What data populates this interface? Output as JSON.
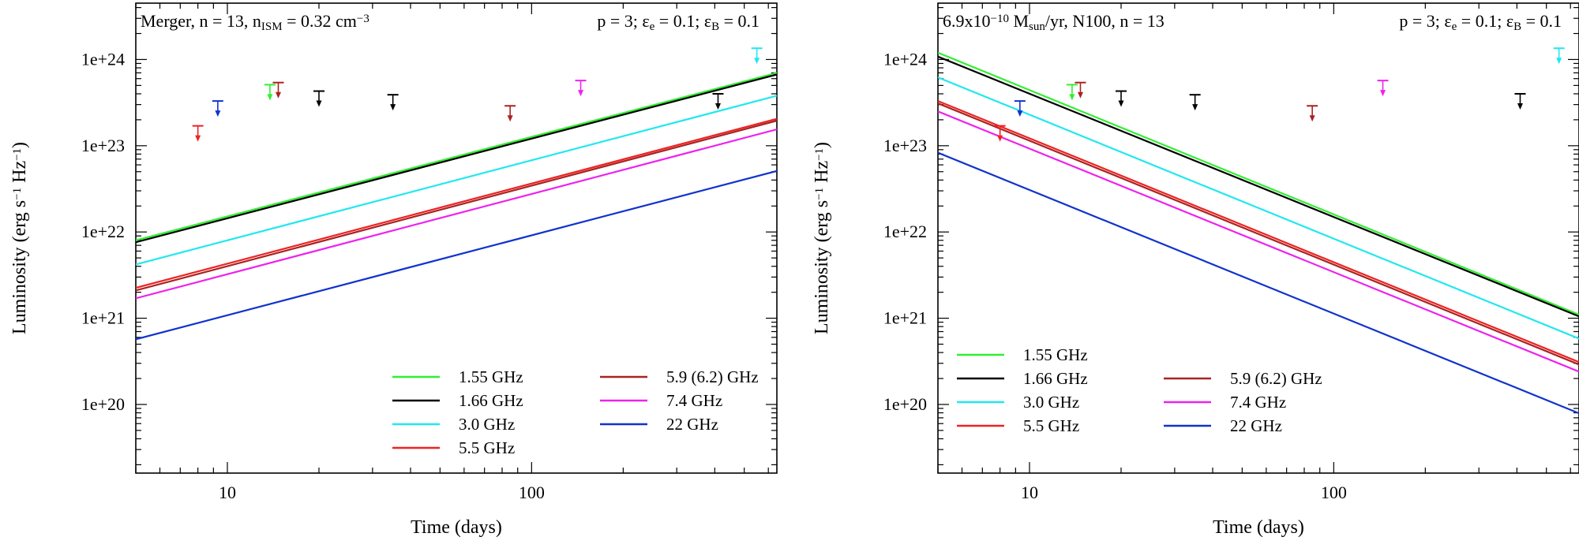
{
  "figure": {
    "colors": {
      "1.55 GHz": "#33ee33",
      "1.66 GHz": "#000000",
      "3.0 GHz": "#22e8ee",
      "5.5 GHz": "#ee2222",
      "5.9 (6.2) GHz": "#aa2222",
      "7.4 GHz": "#ee22ee",
      "22 GHz": "#1133cc"
    }
  },
  "chart_data": [
    {
      "type": "line",
      "title_parts": {
        "left": [
          "Merger, n = 13, n",
          "ISM",
          " = 0.32 cm",
          "−3"
        ],
        "right": [
          "p = 3; ε",
          "e",
          " = 0.1;  ε",
          "B",
          " = 0.1"
        ]
      },
      "xlabel": "Time (days)",
      "ylabel_parts": [
        "Luminosity (erg s",
        "−1",
        " Hz",
        "−1",
        ")"
      ],
      "xscale": "log",
      "yscale": "log",
      "xlim": [
        5,
        640
      ],
      "ylim": [
        1.6e+19,
        4.5e+24
      ],
      "xticks": [
        {
          "v": 10,
          "label": "10"
        },
        {
          "v": 100,
          "label": "100"
        }
      ],
      "yticks": [
        {
          "v": 1e+20,
          "label": "1e+20"
        },
        {
          "v": 1e+21,
          "label": "1e+21"
        },
        {
          "v": 1e+22,
          "label": "1e+22"
        },
        {
          "v": 1e+23,
          "label": "1e+23"
        },
        {
          "v": 1e+24,
          "label": "1e+24"
        }
      ],
      "series": [
        {
          "name": "1.55 GHz",
          "x": [
            5,
            640
          ],
          "y": [
            8e+21,
            7e+23
          ]
        },
        {
          "name": "1.66 GHz",
          "x": [
            5,
            640
          ],
          "y": [
            7.6e+21,
            6.7e+23
          ]
        },
        {
          "name": "3.0 GHz",
          "x": [
            5,
            640
          ],
          "y": [
            4.2e+21,
            3.8e+23
          ]
        },
        {
          "name": "5.5 GHz",
          "x": [
            5,
            640
          ],
          "y": [
            2.25e+21,
            2.05e+23
          ]
        },
        {
          "name": "5.9 (6.2) GHz",
          "x": [
            5,
            640
          ],
          "y": [
            2.1e+21,
            1.95e+23
          ]
        },
        {
          "name": "7.4 GHz",
          "x": [
            5,
            640
          ],
          "y": [
            1.7e+21,
            1.55e+23
          ]
        },
        {
          "name": "22 GHz",
          "x": [
            5,
            640
          ],
          "y": [
            5.7e+20,
            5.1e+22
          ]
        }
      ],
      "upper_limits": [
        {
          "x": 8.0,
          "y": 1.7e+23,
          "name": "5.5 GHz"
        },
        {
          "x": 9.3,
          "y": 3.3e+23,
          "name": "22 GHz"
        },
        {
          "x": 13.8,
          "y": 5.1e+23,
          "name": "1.55 GHz"
        },
        {
          "x": 14.7,
          "y": 5.4e+23,
          "name": "5.9 (6.2) GHz"
        },
        {
          "x": 20.0,
          "y": 4.3e+23,
          "name": "1.66 GHz"
        },
        {
          "x": 35.0,
          "y": 3.9e+23,
          "name": "1.66 GHz"
        },
        {
          "x": 85.0,
          "y": 2.9e+23,
          "name": "5.9 (6.2) GHz"
        },
        {
          "x": 145.0,
          "y": 5.7e+23,
          "name": "7.4 GHz"
        },
        {
          "x": 410.0,
          "y": 4e+23,
          "name": "1.66 GHz"
        },
        {
          "x": 550.0,
          "y": 1.35e+24,
          "name": "3.0 GHz"
        }
      ],
      "legend": {
        "columns": [
          [
            "1.55 GHz",
            "1.66 GHz",
            "3.0 GHz",
            "5.5 GHz"
          ],
          [
            "5.9 (6.2) GHz",
            "7.4 GHz",
            "22 GHz"
          ]
        ],
        "position": "bottom-right",
        "top_row": 0
      }
    },
    {
      "type": "line",
      "title_parts": {
        "left": [
          "6.9x10",
          "−10",
          " M",
          "sun",
          "/yr, N100, n = 13"
        ],
        "right": [
          "p = 3; ε",
          "e",
          " = 0.1;  ε",
          "B",
          " = 0.1"
        ]
      },
      "xlabel": "Time (days)",
      "ylabel_parts": [
        "Luminosity (erg s",
        "−1",
        " Hz",
        "−1",
        ")"
      ],
      "xscale": "log",
      "yscale": "log",
      "xlim": [
        5,
        640
      ],
      "ylim": [
        1.6e+19,
        4.5e+24
      ],
      "xticks": [
        {
          "v": 10,
          "label": "10"
        },
        {
          "v": 100,
          "label": "100"
        }
      ],
      "yticks": [
        {
          "v": 1e+20,
          "label": "1e+20"
        },
        {
          "v": 1e+21,
          "label": "1e+21"
        },
        {
          "v": 1e+22,
          "label": "1e+22"
        },
        {
          "v": 1e+23,
          "label": "1e+23"
        },
        {
          "v": 1e+24,
          "label": "1e+24"
        }
      ],
      "series": [
        {
          "name": "1.55 GHz",
          "x": [
            5,
            640
          ],
          "y": [
            1.2e+24,
            1.1e+21
          ]
        },
        {
          "name": "1.66 GHz",
          "x": [
            5,
            640
          ],
          "y": [
            1.08e+24,
            1.05e+21
          ]
        },
        {
          "name": "3.0 GHz",
          "x": [
            5,
            640
          ],
          "y": [
            6.2e+23,
            5.8e+20
          ]
        },
        {
          "name": "5.5 GHz",
          "x": [
            5,
            640
          ],
          "y": [
            3.3e+23,
            3.1e+20
          ]
        },
        {
          "name": "5.9 (6.2) GHz",
          "x": [
            5,
            640
          ],
          "y": [
            3.1e+23,
            2.9e+20
          ]
        },
        {
          "name": "7.4 GHz",
          "x": [
            5,
            640
          ],
          "y": [
            2.5e+23,
            2.4e+20
          ]
        },
        {
          "name": "22 GHz",
          "x": [
            5,
            640
          ],
          "y": [
            8.3e+22,
            7.9e+19
          ]
        }
      ],
      "upper_limits": [
        {
          "x": 8.0,
          "y": 1.7e+23,
          "name": "5.5 GHz"
        },
        {
          "x": 9.3,
          "y": 3.3e+23,
          "name": "22 GHz"
        },
        {
          "x": 13.8,
          "y": 5.1e+23,
          "name": "1.55 GHz"
        },
        {
          "x": 14.7,
          "y": 5.4e+23,
          "name": "5.9 (6.2) GHz"
        },
        {
          "x": 20.0,
          "y": 4.3e+23,
          "name": "1.66 GHz"
        },
        {
          "x": 35.0,
          "y": 3.9e+23,
          "name": "1.66 GHz"
        },
        {
          "x": 85.0,
          "y": 2.9e+23,
          "name": "5.9 (6.2) GHz"
        },
        {
          "x": 145.0,
          "y": 5.7e+23,
          "name": "7.4 GHz"
        },
        {
          "x": 410.0,
          "y": 4e+23,
          "name": "1.66 GHz"
        },
        {
          "x": 550.0,
          "y": 1.35e+24,
          "name": "3.0 GHz"
        }
      ],
      "legend": {
        "columns": [
          [
            "1.55 GHz",
            "1.66 GHz",
            "3.0 GHz",
            "5.5 GHz"
          ],
          [
            "5.9 (6.2) GHz",
            "7.4 GHz",
            "22 GHz"
          ]
        ],
        "position": "bottom-left",
        "top_row": 0
      }
    }
  ]
}
